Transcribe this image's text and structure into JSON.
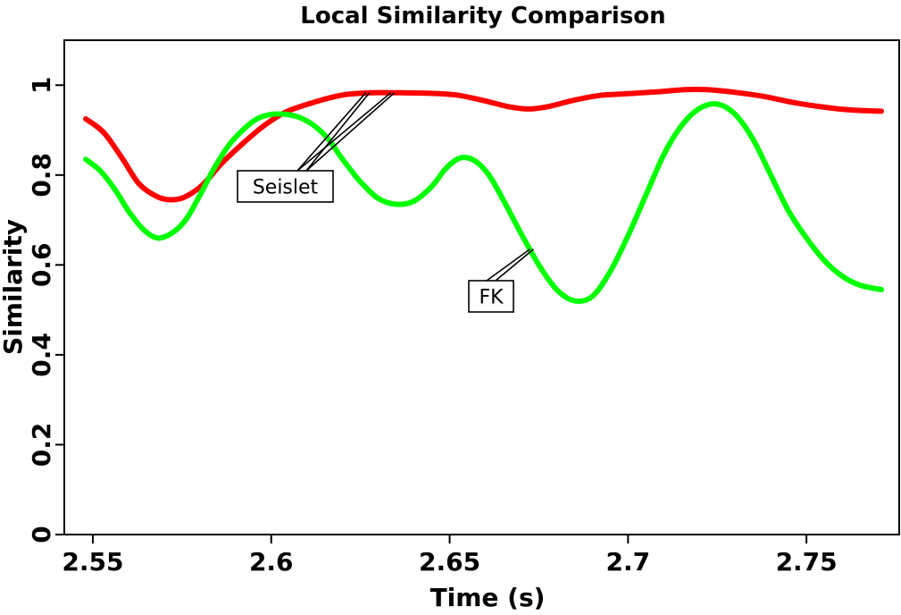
{
  "chart_data": {
    "type": "line",
    "title": "Local Similarity Comparison",
    "xlabel": "Time (s)",
    "ylabel": "Similarity",
    "xlim": [
      2.542,
      2.776
    ],
    "ylim": [
      0,
      1.1
    ],
    "grid": false,
    "xticks": [
      2.55,
      2.6,
      2.65,
      2.7,
      2.75
    ],
    "xtick_labels": [
      "2.55",
      "2.6",
      "2.65",
      "2.7",
      "2.75"
    ],
    "yticks": [
      0,
      0.2,
      0.4,
      0.6,
      0.8,
      1
    ],
    "ytick_labels": [
      "0",
      "0.2",
      "0.4",
      "0.6",
      "0.8",
      "1"
    ],
    "series": [
      {
        "name": "Seislet",
        "color": "#ff0000",
        "points": [
          [
            2.548,
            0.925
          ],
          [
            2.553,
            0.895
          ],
          [
            2.558,
            0.84
          ],
          [
            2.563,
            0.78
          ],
          [
            2.568,
            0.752
          ],
          [
            2.572,
            0.745
          ],
          [
            2.576,
            0.752
          ],
          [
            2.581,
            0.78
          ],
          [
            2.586,
            0.825
          ],
          [
            2.592,
            0.87
          ],
          [
            2.598,
            0.91
          ],
          [
            2.604,
            0.94
          ],
          [
            2.612,
            0.962
          ],
          [
            2.62,
            0.978
          ],
          [
            2.628,
            0.983
          ],
          [
            2.636,
            0.983
          ],
          [
            2.644,
            0.982
          ],
          [
            2.652,
            0.978
          ],
          [
            2.66,
            0.965
          ],
          [
            2.666,
            0.953
          ],
          [
            2.672,
            0.947
          ],
          [
            2.678,
            0.953
          ],
          [
            2.685,
            0.967
          ],
          [
            2.692,
            0.977
          ],
          [
            2.7,
            0.981
          ],
          [
            2.708,
            0.985
          ],
          [
            2.716,
            0.99
          ],
          [
            2.722,
            0.99
          ],
          [
            2.73,
            0.984
          ],
          [
            2.738,
            0.975
          ],
          [
            2.746,
            0.962
          ],
          [
            2.754,
            0.952
          ],
          [
            2.762,
            0.945
          ],
          [
            2.771,
            0.942
          ]
        ]
      },
      {
        "name": "FK",
        "color": "#00ff00",
        "points": [
          [
            2.548,
            0.835
          ],
          [
            2.552,
            0.81
          ],
          [
            2.556,
            0.77
          ],
          [
            2.56,
            0.72
          ],
          [
            2.564,
            0.68
          ],
          [
            2.568,
            0.66
          ],
          [
            2.572,
            0.67
          ],
          [
            2.576,
            0.7
          ],
          [
            2.58,
            0.755
          ],
          [
            2.584,
            0.815
          ],
          [
            2.588,
            0.865
          ],
          [
            2.592,
            0.9
          ],
          [
            2.596,
            0.925
          ],
          [
            2.6,
            0.935
          ],
          [
            2.604,
            0.935
          ],
          [
            2.608,
            0.928
          ],
          [
            2.612,
            0.91
          ],
          [
            2.616,
            0.88
          ],
          [
            2.62,
            0.835
          ],
          [
            2.625,
            0.785
          ],
          [
            2.63,
            0.748
          ],
          [
            2.635,
            0.735
          ],
          [
            2.64,
            0.742
          ],
          [
            2.645,
            0.775
          ],
          [
            2.649,
            0.815
          ],
          [
            2.653,
            0.838
          ],
          [
            2.657,
            0.832
          ],
          [
            2.661,
            0.8
          ],
          [
            2.665,
            0.745
          ],
          [
            2.67,
            0.67
          ],
          [
            2.675,
            0.6
          ],
          [
            2.68,
            0.545
          ],
          [
            2.685,
            0.52
          ],
          [
            2.69,
            0.53
          ],
          [
            2.695,
            0.585
          ],
          [
            2.7,
            0.665
          ],
          [
            2.705,
            0.755
          ],
          [
            2.71,
            0.845
          ],
          [
            2.715,
            0.91
          ],
          [
            2.72,
            0.948
          ],
          [
            2.725,
            0.958
          ],
          [
            2.73,
            0.935
          ],
          [
            2.735,
            0.88
          ],
          [
            2.74,
            0.8
          ],
          [
            2.745,
            0.72
          ],
          [
            2.75,
            0.66
          ],
          [
            2.755,
            0.61
          ],
          [
            2.76,
            0.575
          ],
          [
            2.765,
            0.555
          ],
          [
            2.771,
            0.545
          ]
        ]
      }
    ],
    "annotations": [
      {
        "text": "Seislet",
        "targets": [
          [
            2.6265,
            0.983
          ],
          [
            2.6335,
            0.983
          ]
        ]
      },
      {
        "text": "FK",
        "targets": [
          [
            2.6725,
            0.635
          ]
        ]
      }
    ]
  }
}
